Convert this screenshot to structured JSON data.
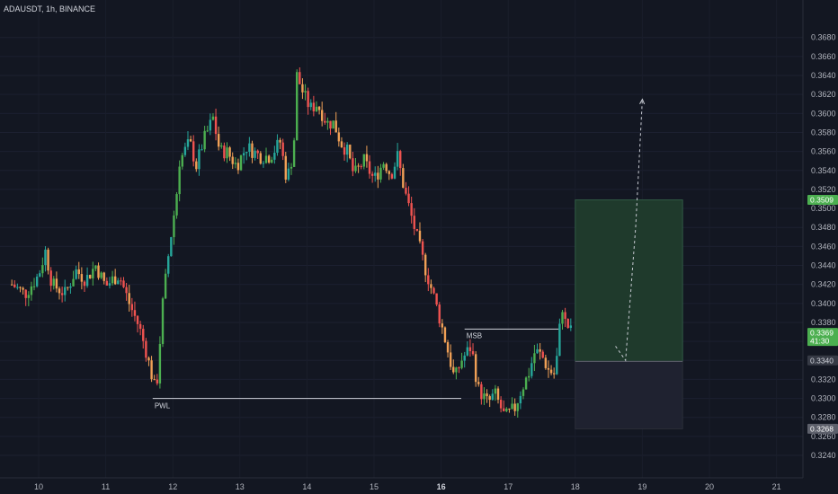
{
  "header": {
    "symbol_label": "ADAUSDT, 1h, BINANCE"
  },
  "colors": {
    "background": "#131722",
    "up": "#26a69a",
    "up_alt": "#4caf50",
    "down": "#ef5350",
    "down_alt": "#f0a056",
    "target_zone": "#1f3a2c",
    "stop_zone": "#1f2230",
    "axis_text": "#b2b5be"
  },
  "chart_data": {
    "type": "candlestick",
    "title": "ADAUSDT, 1h, BINANCE",
    "x_ticks": [
      {
        "label": "10",
        "bold": false
      },
      {
        "label": "11",
        "bold": false
      },
      {
        "label": "12",
        "bold": false
      },
      {
        "label": "13",
        "bold": false
      },
      {
        "label": "14",
        "bold": false
      },
      {
        "label": "15",
        "bold": false
      },
      {
        "label": "16",
        "bold": true
      },
      {
        "label": "17",
        "bold": false
      },
      {
        "label": "18",
        "bold": false
      },
      {
        "label": "19",
        "bold": false
      },
      {
        "label": "20",
        "bold": false
      },
      {
        "label": "21",
        "bold": false
      }
    ],
    "y_ticks": [
      "0.3680",
      "0.3660",
      "0.3640",
      "0.3620",
      "0.3600",
      "0.3580",
      "0.3560",
      "0.3540",
      "0.3520",
      "0.3500",
      "0.3480",
      "0.3460",
      "0.3440",
      "0.3420",
      "0.3400",
      "0.3380",
      "0.3360",
      "0.3340",
      "0.3320",
      "0.3300",
      "0.3280",
      "0.3260",
      "0.3240"
    ],
    "ylim": [
      0.3223,
      0.371
    ],
    "price_path": [
      [
        9.6,
        0.342
      ],
      [
        9.8,
        0.341
      ],
      [
        10.0,
        0.343
      ],
      [
        10.1,
        0.3455
      ],
      [
        10.2,
        0.342
      ],
      [
        10.4,
        0.341
      ],
      [
        10.55,
        0.3435
      ],
      [
        10.7,
        0.3425
      ],
      [
        10.85,
        0.344
      ],
      [
        11.0,
        0.3418
      ],
      [
        11.1,
        0.3425
      ],
      [
        11.2,
        0.343
      ],
      [
        11.35,
        0.34
      ],
      [
        11.5,
        0.3375
      ],
      [
        11.6,
        0.335
      ],
      [
        11.75,
        0.3305
      ],
      [
        11.85,
        0.34
      ],
      [
        11.95,
        0.346
      ],
      [
        12.05,
        0.351
      ],
      [
        12.1,
        0.355
      ],
      [
        12.25,
        0.357
      ],
      [
        12.35,
        0.3545
      ],
      [
        12.45,
        0.357
      ],
      [
        12.6,
        0.3595
      ],
      [
        12.7,
        0.356
      ],
      [
        12.8,
        0.356
      ],
      [
        12.95,
        0.3545
      ],
      [
        13.1,
        0.3565
      ],
      [
        13.3,
        0.3555
      ],
      [
        13.45,
        0.3555
      ],
      [
        13.6,
        0.357
      ],
      [
        13.7,
        0.353
      ],
      [
        13.8,
        0.356
      ],
      [
        13.85,
        0.364
      ],
      [
        13.95,
        0.362
      ],
      [
        14.05,
        0.3605
      ],
      [
        14.15,
        0.361
      ],
      [
        14.3,
        0.359
      ],
      [
        14.4,
        0.359
      ],
      [
        14.5,
        0.357
      ],
      [
        14.6,
        0.356
      ],
      [
        14.7,
        0.3535
      ],
      [
        14.85,
        0.355
      ],
      [
        15.0,
        0.353
      ],
      [
        15.15,
        0.355
      ],
      [
        15.25,
        0.3535
      ],
      [
        15.35,
        0.3555
      ],
      [
        15.45,
        0.352
      ],
      [
        15.6,
        0.348
      ],
      [
        15.75,
        0.344
      ],
      [
        15.9,
        0.3405
      ],
      [
        16.05,
        0.3365
      ],
      [
        16.2,
        0.332
      ],
      [
        16.3,
        0.334
      ],
      [
        16.45,
        0.3355
      ],
      [
        16.55,
        0.331
      ],
      [
        16.7,
        0.3295
      ],
      [
        16.8,
        0.3305
      ],
      [
        16.95,
        0.328
      ],
      [
        17.1,
        0.329
      ],
      [
        17.2,
        0.331
      ],
      [
        17.3,
        0.3325
      ],
      [
        17.4,
        0.335
      ],
      [
        17.5,
        0.3345
      ],
      [
        17.6,
        0.333
      ],
      [
        17.7,
        0.3325
      ],
      [
        17.75,
        0.336
      ],
      [
        17.8,
        0.34
      ],
      [
        17.85,
        0.338
      ],
      [
        17.95,
        0.3369
      ]
    ],
    "levels": [
      {
        "name": "PWL",
        "price": 0.33,
        "x_start": 11.7,
        "x_end": 16.3
      },
      {
        "name": "MSB",
        "price": 0.3373,
        "x_start": 16.35,
        "x_end": 17.75
      }
    ],
    "position": {
      "type": "long",
      "entry": 0.3339,
      "target": 0.3509,
      "stop": 0.3268,
      "x_start": 18.0,
      "x_end": 19.6
    },
    "projection": [
      [
        18.6,
        0.3355
      ],
      [
        18.75,
        0.334
      ],
      [
        18.9,
        0.348
      ],
      [
        19.0,
        0.3615
      ]
    ],
    "price_badges": [
      {
        "text": "0.3509",
        "price": 0.3509,
        "bg": "#4caf50",
        "fg": "#ffffff"
      },
      {
        "text": "0.3369",
        "sub": "41:30",
        "price": 0.3369,
        "bg": "#4caf50",
        "fg": "#ffffff"
      },
      {
        "text": "0.3340",
        "price": 0.334,
        "bg": "#363a45",
        "fg": "#d1d4dc"
      },
      {
        "text": "0.3268",
        "price": 0.3268,
        "bg": "#5d606b",
        "fg": "#ffffff"
      }
    ]
  }
}
